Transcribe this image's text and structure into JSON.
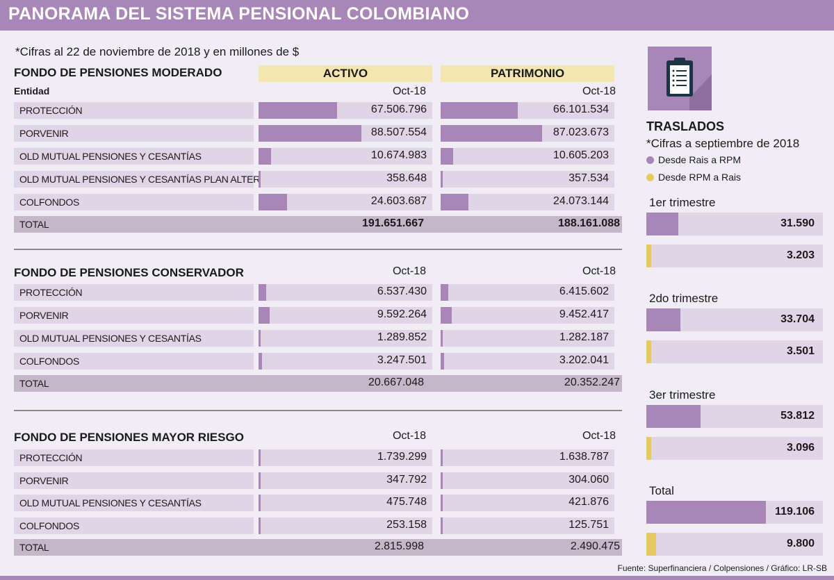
{
  "title": "PANORAMA DEL SISTEMA PENSIONAL COLOMBIANO",
  "subtitle": "*Cifras al 22 de noviembre de 2018 y en millones de $",
  "entidad_label": "Entidad",
  "col_activo": "ACTIVO",
  "col_patrimonio": "PATRIMONIO",
  "period": "Oct-18",
  "colors": {
    "purple": "#a887b8",
    "yellow": "#e8c95c",
    "header_bg": "#a887b8"
  },
  "traslados": {
    "title": "TRASLADOS",
    "note": "*Cifras a septiembre de 2018",
    "legend": [
      "Desde Rais a RPM",
      "Desde RPM a Rais"
    ],
    "icon": "clipboard-icon"
  },
  "source": "Fuente: Superfinanciera / Colpensiones / Gráfico: LR-SB",
  "chart_data": [
    {
      "type": "bar",
      "title": "FONDO DE PENSIONES MODERADO",
      "categories": [
        "PROTECCIÓN",
        "PORVENIR",
        "OLD MUTUAL PENSIONES Y CESANTÍAS",
        "OLD MUTUAL PENSIONES Y CESANTÍAS  PLAN ALTERNATIVO",
        "COLFONDOS"
      ],
      "series": [
        {
          "name": "ACTIVO",
          "values": [
            67506796,
            88507554,
            10674983,
            358648,
            24603687
          ],
          "labels": [
            "67.506.796",
            "88.507.554",
            "10.674.983",
            "358.648",
            "24.603.687"
          ]
        },
        {
          "name": "PATRIMONIO",
          "values": [
            66101534,
            87023673,
            10605203,
            357534,
            24073144
          ],
          "labels": [
            "66.101.534",
            "87.023.673",
            "10.605.203",
            "357.534",
            "24.073.144"
          ]
        }
      ],
      "total_label": "TOTAL",
      "totals": [
        "191.651.667",
        "188.161.088"
      ],
      "total_bold": true
    },
    {
      "type": "bar",
      "title": "FONDO DE PENSIONES CONSERVADOR",
      "categories": [
        "PROTECCIÓN",
        "PORVENIR",
        "OLD MUTUAL PENSIONES Y CESANTÍAS",
        "COLFONDOS"
      ],
      "series": [
        {
          "name": "ACTIVO",
          "values": [
            6537430,
            9592264,
            1289852,
            3247501
          ],
          "labels": [
            "6.537.430",
            "9.592.264",
            "1.289.852",
            "3.247.501"
          ]
        },
        {
          "name": "PATRIMONIO",
          "values": [
            6415602,
            9452417,
            1282187,
            3202041
          ],
          "labels": [
            "6.415.602",
            "9.452.417",
            "1.282.187",
            "3.202.041"
          ]
        }
      ],
      "total_label": "TOTAL",
      "totals": [
        "20.667.048",
        "20.352.247"
      ],
      "total_bold": false
    },
    {
      "type": "bar",
      "title": "FONDO DE PENSIONES MAYOR RIESGO",
      "categories": [
        "PROTECCIÓN",
        "PORVENIR",
        "OLD MUTUAL PENSIONES Y CESANTÍAS",
        "COLFONDOS"
      ],
      "series": [
        {
          "name": "ACTIVO",
          "values": [
            1739299,
            347792,
            475748,
            253158
          ],
          "labels": [
            "1.739.299",
            "347.792",
            "475.748",
            "253.158"
          ]
        },
        {
          "name": "PATRIMONIO",
          "values": [
            1638787,
            304060,
            421876,
            125751
          ],
          "labels": [
            "1.638.787",
            "304.060",
            "421.876",
            "125.751"
          ]
        }
      ],
      "total_label": "TOTAL",
      "totals": [
        "2.815.998",
        "2.490.475"
      ],
      "total_bold": false
    },
    {
      "type": "bar",
      "title": "TRASLADOS",
      "categories": [
        "1er trimestre",
        "2do trimestre",
        "3er trimestre",
        "Total"
      ],
      "series": [
        {
          "name": "Desde Rais a RPM",
          "values": [
            31590,
            33704,
            53812,
            119106
          ],
          "labels": [
            "31.590",
            "33.704",
            "53.812",
            "119.106"
          ]
        },
        {
          "name": "Desde RPM a Rais",
          "values": [
            3203,
            3501,
            3096,
            9800
          ],
          "labels": [
            "3.203",
            "3.501",
            "3.096",
            "9.800"
          ]
        }
      ]
    }
  ]
}
